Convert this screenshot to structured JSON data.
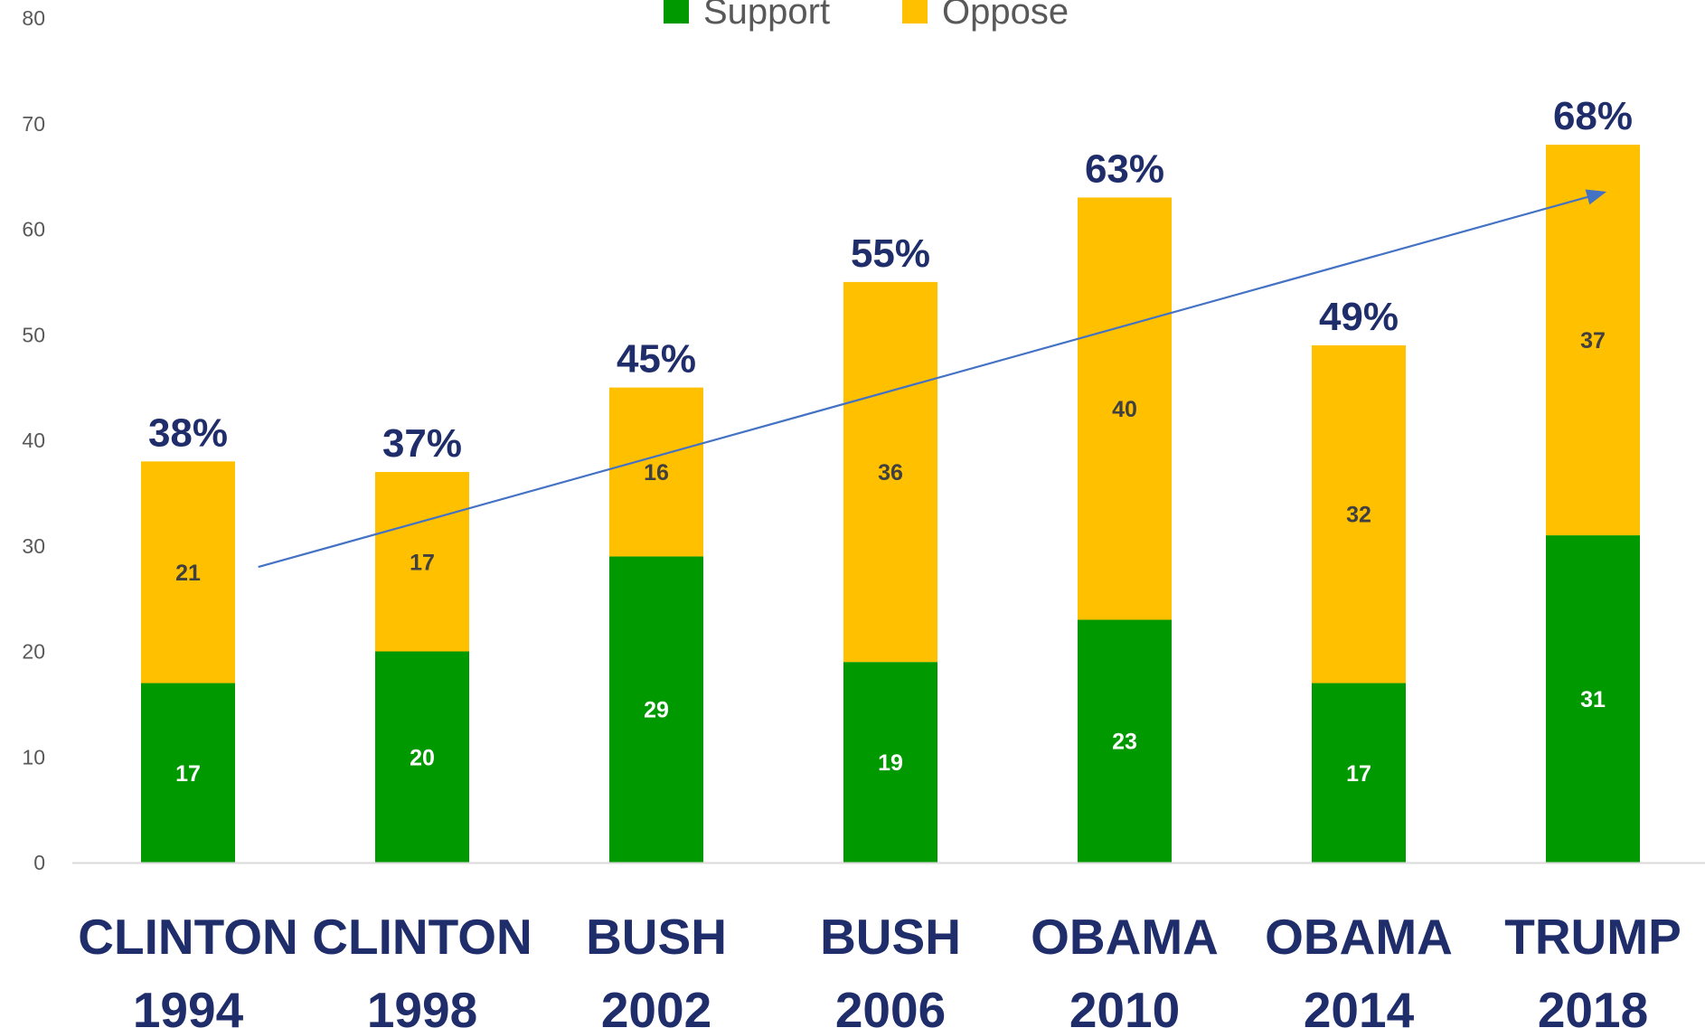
{
  "chart_data": {
    "type": "bar",
    "stacked": true,
    "categories": [
      [
        "CLINTON",
        "1994"
      ],
      [
        "CLINTON",
        "1998"
      ],
      [
        "BUSH",
        "2002"
      ],
      [
        "BUSH",
        "2006"
      ],
      [
        "OBAMA",
        "2010"
      ],
      [
        "OBAMA",
        "2014"
      ],
      [
        "TRUMP",
        "2018"
      ]
    ],
    "series": [
      {
        "name": "Support",
        "color": "#009900",
        "label_color": "#ffffff",
        "values": [
          17,
          20,
          29,
          19,
          23,
          17,
          31
        ]
      },
      {
        "name": "Oppose",
        "color": "#ffc000",
        "label_color": "#404040",
        "values": [
          21,
          17,
          16,
          36,
          40,
          32,
          37
        ]
      }
    ],
    "totals": [
      "38%",
      "37%",
      "45%",
      "55%",
      "63%",
      "49%",
      "68%"
    ],
    "ylim": [
      0,
      80
    ],
    "yticks": [
      0,
      10,
      20,
      30,
      40,
      50,
      60,
      70,
      80
    ],
    "legend_position": "top-center",
    "grid": false,
    "trend_arrow": {
      "from": [
        0.3,
        28
      ],
      "to": [
        6.05,
        63.5
      ],
      "color": "#4472c4"
    },
    "title": "",
    "xlabel": "",
    "ylabel": ""
  }
}
